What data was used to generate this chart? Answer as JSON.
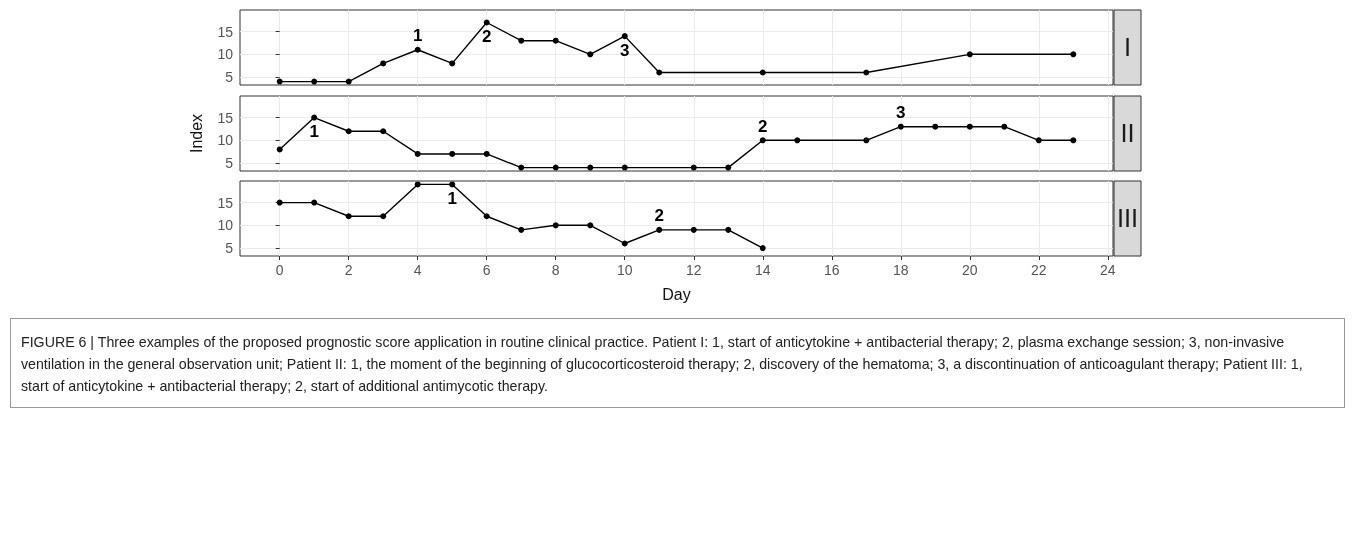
{
  "chart_data": [
    {
      "type": "line",
      "title": "I",
      "x": [
        0,
        1,
        2,
        3,
        4,
        5,
        6,
        7,
        8,
        9,
        10,
        11,
        14,
        17,
        20,
        23
      ],
      "xlim": [
        -1.15,
        24.15
      ],
      "xticks": [
        0,
        2,
        4,
        6,
        8,
        10,
        12,
        14,
        16,
        18,
        20,
        22,
        24
      ],
      "ylim": [
        3.25,
        19.75
      ],
      "yticks": [
        5,
        10,
        15
      ],
      "grid": true,
      "marker": "circle",
      "line_style": "solid",
      "tick_labels": "y",
      "series": [
        {
          "color": "#000000",
          "values": [
            4,
            4,
            4,
            8,
            11,
            8,
            17,
            13,
            13,
            10,
            14,
            6,
            6,
            6,
            10,
            10
          ]
        }
      ],
      "annotations": [
        {
          "text": "1",
          "x": 4,
          "y": 11
        },
        {
          "text": "2",
          "x": 6,
          "y": 17
        },
        {
          "text": "3",
          "x": 10,
          "y": 14
        }
      ]
    },
    {
      "type": "line",
      "title": "II",
      "ylabel": "Index",
      "x": [
        0,
        1,
        2,
        3,
        4,
        5,
        6,
        7,
        8,
        9,
        10,
        12,
        13,
        14,
        15,
        17,
        18,
        19,
        20,
        21,
        22,
        23
      ],
      "xlim": [
        -1.15,
        24.15
      ],
      "xticks": [
        0,
        2,
        4,
        6,
        8,
        10,
        12,
        14,
        16,
        18,
        20,
        22,
        24
      ],
      "ylim": [
        3.25,
        19.75
      ],
      "yticks": [
        5,
        10,
        15
      ],
      "grid": true,
      "marker": "circle",
      "line_style": "solid",
      "tick_labels": "y",
      "series": [
        {
          "color": "#000000",
          "values": [
            8,
            15,
            12,
            12,
            7,
            7,
            7,
            4,
            4,
            4,
            4,
            4,
            4,
            10,
            10,
            10,
            13,
            13,
            13,
            13,
            10,
            10
          ]
        }
      ],
      "annotations": [
        {
          "text": "1",
          "x": 1,
          "y": 15
        },
        {
          "text": "2",
          "x": 14,
          "y": 10
        },
        {
          "text": "3",
          "x": 18,
          "y": 13
        }
      ]
    },
    {
      "type": "line",
      "title": "III",
      "xlabel": "Day",
      "x": [
        0,
        1,
        2,
        3,
        4,
        5,
        6,
        7,
        8,
        9,
        10,
        11,
        12,
        13,
        14
      ],
      "xlim": [
        -1.15,
        24.15
      ],
      "xticks": [
        0,
        2,
        4,
        6,
        8,
        10,
        12,
        14,
        16,
        18,
        20,
        22,
        24
      ],
      "ylim": [
        3.25,
        19.75
      ],
      "yticks": [
        5,
        10,
        15
      ],
      "grid": true,
      "marker": "circle",
      "line_style": "solid",
      "series": [
        {
          "color": "#000000",
          "values": [
            15,
            15,
            12,
            12,
            19,
            19,
            12,
            9,
            10,
            10,
            6,
            9,
            9,
            9,
            5
          ]
        }
      ],
      "annotations": [
        {
          "text": "1",
          "x": 5,
          "y": 19
        },
        {
          "text": "2",
          "x": 11,
          "y": 9
        },
        "FIGURE 6 | Three examples of the proposed prognostic score application in routine clinical practice. Patient I: 1, start of anticytokine + antibacterial therapy; 2, plasma exchange session; 3, non-invasive ventilation in the general observation unit; Patient II: 1, the moment of the beginning of glucocorticosteroid therapy; 2, discovery of the hematoma; 3, a discontinuation of anticoagulant therapy; Patient III: 1, start of anticytokine + antibacterial therapy; 2, start of additional antimycotic therapy."
      ]
    }
  ]
}
